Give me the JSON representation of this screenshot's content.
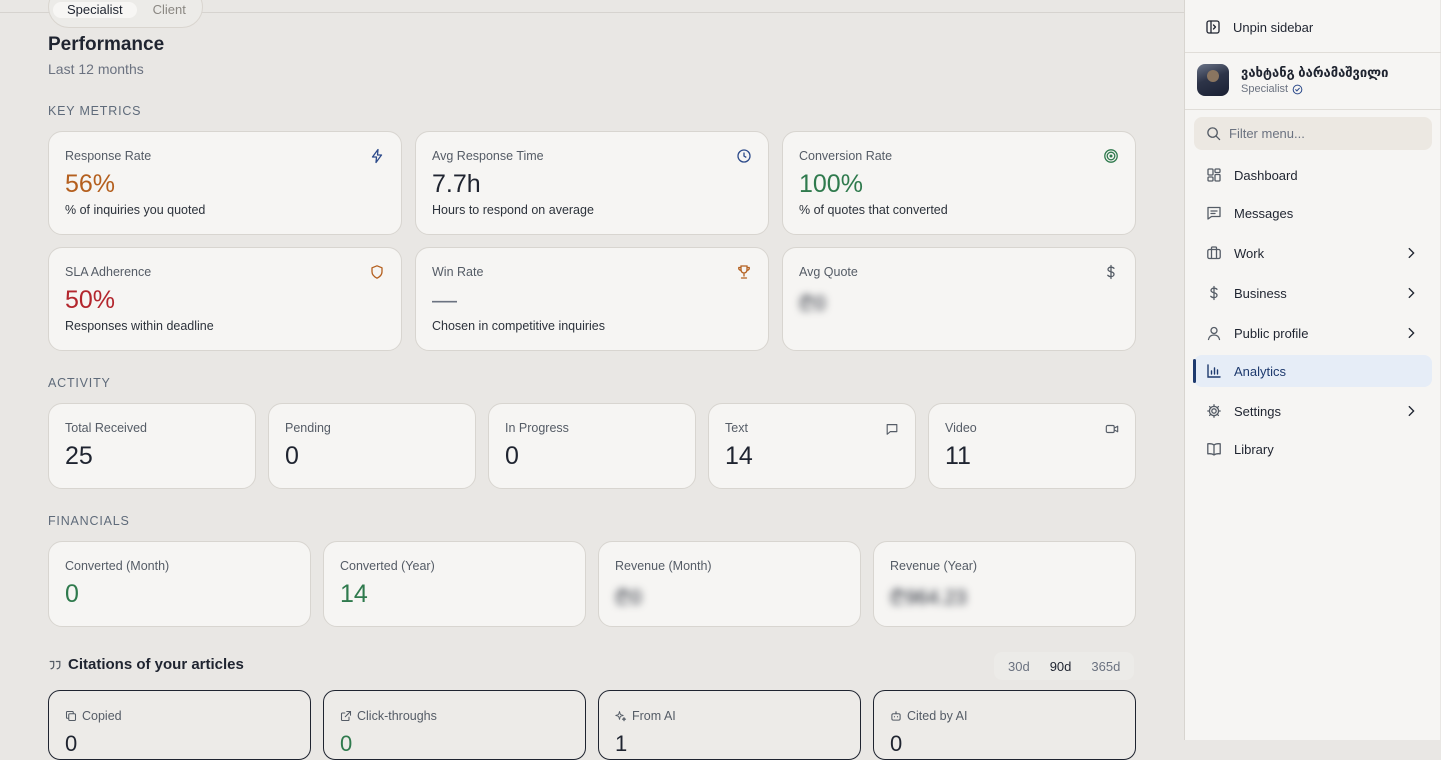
{
  "segment": {
    "options": [
      "Specialist",
      "Client"
    ],
    "active": "Specialist"
  },
  "header": {
    "title": "Performance",
    "subtitle": "Last 12 months"
  },
  "key_metrics": {
    "label": "KEY METRICS",
    "cards": [
      {
        "label": "Response Rate",
        "value": "56%",
        "desc": "% of inquiries you quoted",
        "icon": "bolt-icon",
        "color": "#b45f1e"
      },
      {
        "label": "Avg Response Time",
        "value": "7.7h",
        "desc": "Hours to respond on average",
        "icon": "clock-icon",
        "color": "#1f2430"
      },
      {
        "label": "Conversion Rate",
        "value": "100%",
        "desc": "% of quotes that converted",
        "icon": "target-icon",
        "color": "#2f7a4d"
      },
      {
        "label": "SLA Adherence",
        "value": "50%",
        "desc": "Responses within deadline",
        "icon": "shield-icon",
        "color": "#b3262d"
      },
      {
        "label": "Win Rate",
        "value": "—",
        "desc": "Chosen in competitive inquiries",
        "icon": "trophy-icon",
        "color": "#6b7280"
      },
      {
        "label": "Avg Quote",
        "value": "₾0",
        "desc": "",
        "icon": "dollar-icon",
        "color": "#6b6f76"
      }
    ]
  },
  "activity": {
    "label": "ACTIVITY",
    "cards": [
      {
        "label": "Total Received",
        "value": "25"
      },
      {
        "label": "Pending",
        "value": "0"
      },
      {
        "label": "In Progress",
        "value": "0"
      },
      {
        "label": "Text",
        "value": "14",
        "icon": "message-icon"
      },
      {
        "label": "Video",
        "value": "11",
        "icon": "video-icon"
      }
    ]
  },
  "financials": {
    "label": "FINANCIALS",
    "cards": [
      {
        "label": "Converted (Month)",
        "value": "0"
      },
      {
        "label": "Converted (Year)",
        "value": "14"
      },
      {
        "label": "Revenue (Month)",
        "value": "₾0"
      },
      {
        "label": "Revenue (Year)",
        "value": "₾964.23"
      }
    ]
  },
  "citations": {
    "title": "Citations of your articles",
    "ranges": [
      "30d",
      "90d",
      "365d"
    ],
    "active_range": "90d",
    "cards": [
      {
        "label": "Copied",
        "value": "0",
        "icon": "copy-icon"
      },
      {
        "label": "Click-throughs",
        "value": "0",
        "icon": "external-link-icon"
      },
      {
        "label": "From AI",
        "value": "1",
        "icon": "sparkles-icon"
      },
      {
        "label": "Cited by AI",
        "value": "0",
        "icon": "bot-icon"
      }
    ]
  },
  "sidebar": {
    "unpin_label": "Unpin sidebar",
    "user": {
      "name": "ვახტანგ ბარამაშვილი",
      "role": "Specialist"
    },
    "filter_placeholder": "Filter menu...",
    "items": [
      {
        "label": "Dashboard",
        "icon": "dashboard-icon"
      },
      {
        "label": "Messages",
        "icon": "messages-icon"
      },
      {
        "label": "Work",
        "icon": "briefcase-icon",
        "chevron": true
      },
      {
        "label": "Business",
        "icon": "dollar-icon",
        "chevron": true
      },
      {
        "label": "Public profile",
        "icon": "user-icon",
        "chevron": true
      },
      {
        "label": "Analytics",
        "icon": "chart-icon",
        "active": true
      },
      {
        "label": "Settings",
        "icon": "gear-icon",
        "chevron": true
      },
      {
        "label": "Library",
        "icon": "book-icon"
      }
    ]
  },
  "colors": {
    "accent": "#1e3a6e",
    "orange": "#b45f1e",
    "green": "#2f7a4d",
    "red": "#b3262d"
  }
}
